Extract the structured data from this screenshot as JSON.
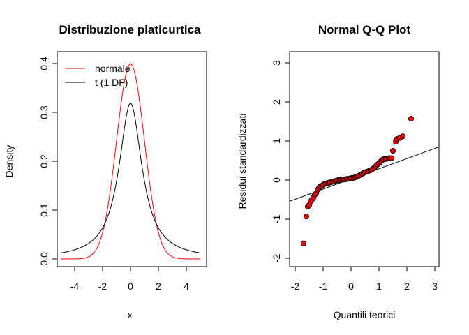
{
  "chart_data": [
    {
      "type": "line",
      "title": "Distribuzione platicurtica",
      "xlabel": "x",
      "ylabel": "Density",
      "xlim": [
        -5,
        5
      ],
      "ylim": [
        0,
        0.4
      ],
      "xticks": [
        -4,
        -2,
        0,
        2,
        4
      ],
      "yticks": [
        0.0,
        0.1,
        0.2,
        0.3,
        0.4
      ],
      "ytick_labels": [
        "0.0",
        "0.1",
        "0.2",
        "0.3",
        "0.4"
      ],
      "grid": false,
      "legend_position": "top-left",
      "series": [
        {
          "name": "normale",
          "color": "#ff0000",
          "distribution": "normal",
          "mean": 0,
          "sd": 1
        },
        {
          "name": "t (1 DF)",
          "color": "#000000",
          "distribution": "cauchy",
          "df": 1
        }
      ]
    },
    {
      "type": "scatter",
      "title": "Normal Q-Q Plot",
      "xlabel": "Quantili teorici",
      "ylabel": "Residui  standardizzati",
      "xlim": [
        -2,
        3
      ],
      "ylim": [
        -2,
        3
      ],
      "xticks": [
        -2,
        -1,
        0,
        1,
        2,
        3
      ],
      "yticks": [
        -2,
        -1,
        0,
        1,
        2,
        3
      ],
      "grid": false,
      "point_fill": "#ff0000",
      "point_edge": "#000000",
      "reference_line": {
        "intercept": 0.03,
        "slope": 0.26
      },
      "x": [
        -1.7,
        -1.6,
        -1.55,
        -1.5,
        -1.45,
        -1.4,
        -1.35,
        -1.3,
        -1.25,
        -1.2,
        -1.15,
        -1.1,
        -1.05,
        -1.0,
        -0.95,
        -0.9,
        -0.85,
        -0.8,
        -0.75,
        -0.7,
        -0.65,
        -0.6,
        -0.55,
        -0.5,
        -0.45,
        -0.4,
        -0.35,
        -0.3,
        -0.25,
        -0.2,
        -0.15,
        -0.1,
        -0.05,
        0.0,
        0.05,
        0.1,
        0.15,
        0.2,
        0.25,
        0.3,
        0.35,
        0.4,
        0.45,
        0.5,
        0.55,
        0.6,
        0.65,
        0.7,
        0.75,
        0.8,
        0.85,
        0.9,
        0.95,
        1.0,
        1.05,
        1.1,
        1.15,
        1.2,
        1.25,
        1.3,
        1.35,
        1.4,
        1.45,
        1.5,
        1.6,
        1.65,
        1.75,
        1.85,
        2.15
      ],
      "y": [
        -1.62,
        -0.93,
        -0.68,
        -0.64,
        -0.55,
        -0.5,
        -0.45,
        -0.38,
        -0.34,
        -0.25,
        -0.2,
        -0.16,
        -0.15,
        -0.12,
        -0.1,
        -0.09,
        -0.08,
        -0.07,
        -0.06,
        -0.05,
        -0.04,
        -0.03,
        -0.02,
        -0.01,
        0.0,
        0.0,
        0.01,
        0.01,
        0.02,
        0.02,
        0.03,
        0.03,
        0.04,
        0.05,
        0.05,
        0.06,
        0.07,
        0.09,
        0.1,
        0.12,
        0.14,
        0.16,
        0.18,
        0.2,
        0.21,
        0.22,
        0.24,
        0.25,
        0.27,
        0.3,
        0.33,
        0.37,
        0.4,
        0.43,
        0.47,
        0.5,
        0.53,
        0.54,
        0.54,
        0.55,
        0.56,
        0.56,
        0.56,
        0.75,
        0.98,
        1.05,
        1.08,
        1.12,
        1.57
      ]
    }
  ]
}
